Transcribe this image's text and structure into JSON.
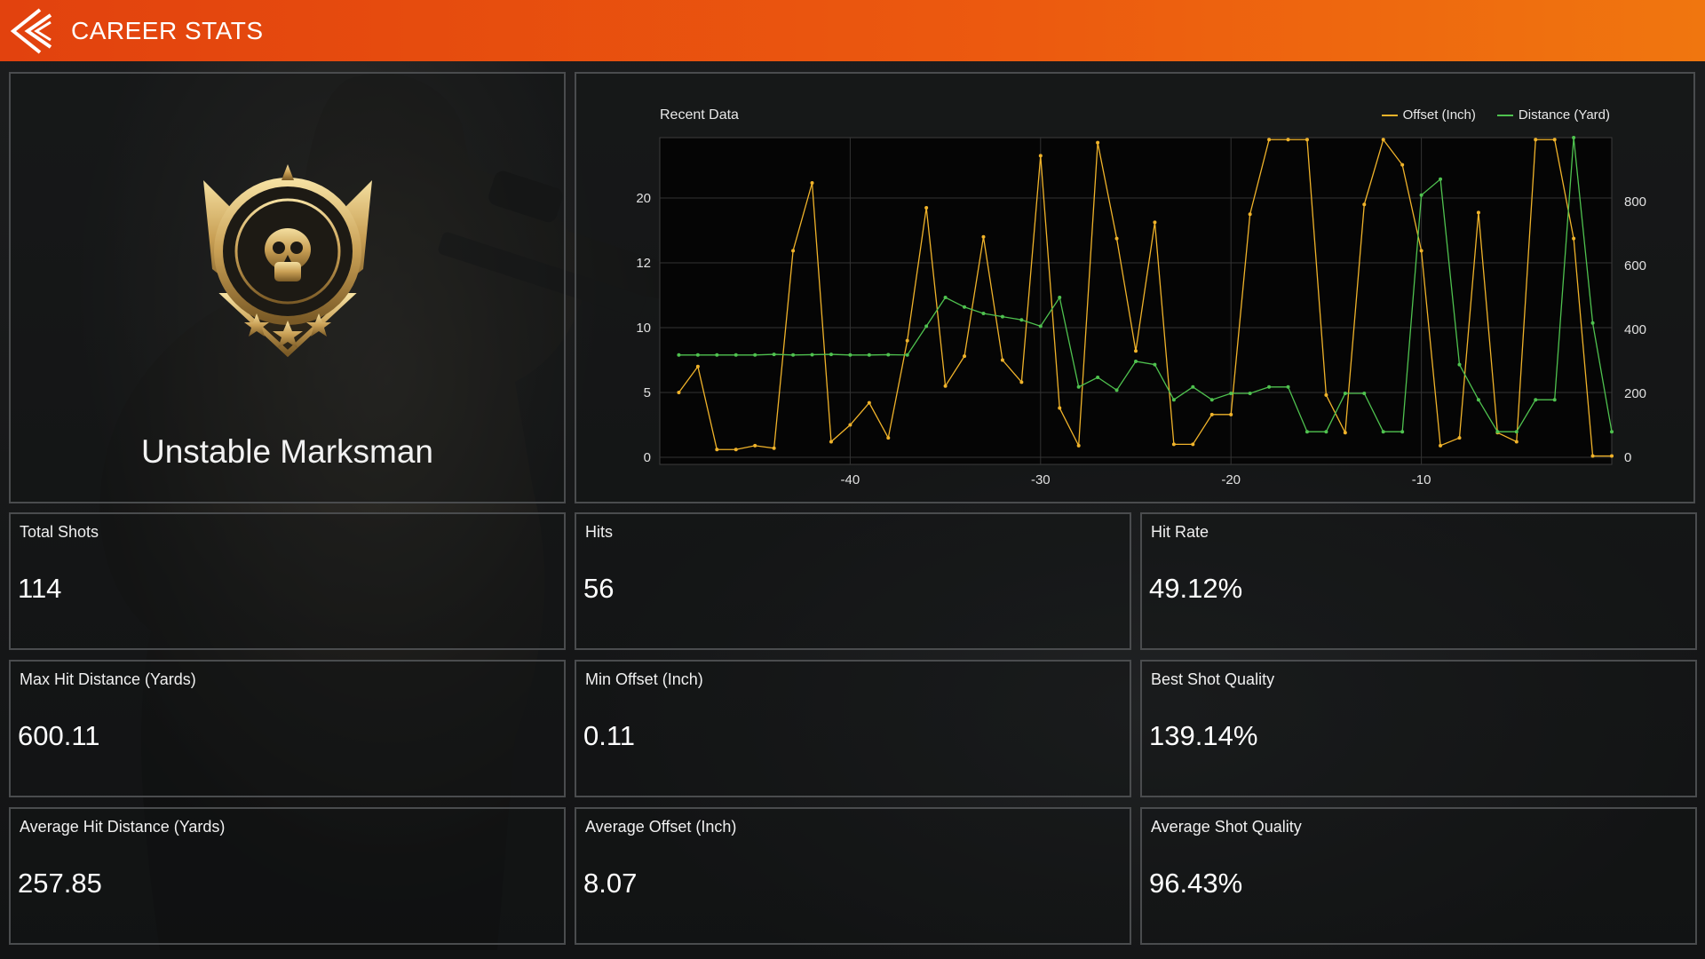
{
  "header": {
    "title": "CAREER STATS",
    "back_icon": "double-chevron-left-icon"
  },
  "colors": {
    "accent": "#e8520f",
    "offset_series": "#f0b32a",
    "distance_series": "#4fc24f"
  },
  "badge": {
    "name": "Unstable Marksman",
    "icon": "skull-crosshair-medal-icon",
    "stars": 3
  },
  "chart": {
    "title": "Recent Data",
    "legend": {
      "offset": "Offset (Inch)",
      "distance": "Distance (Yard)"
    }
  },
  "chart_data": {
    "type": "line",
    "title": "Recent Data",
    "x": [
      -49,
      -48,
      -47,
      -46,
      -45,
      -44,
      -43,
      -42,
      -41,
      -40,
      -39,
      -38,
      -37,
      -36,
      -35,
      -34,
      -33,
      -32,
      -31,
      -30,
      -29,
      -28,
      -27,
      -26,
      -25,
      -24,
      -23,
      -22,
      -21,
      -20,
      -19,
      -18,
      -17,
      -16,
      -15,
      -14,
      -13,
      -12,
      -11,
      -10,
      -9,
      -8,
      -7,
      -6,
      -5,
      -4,
      -3,
      -2,
      -1,
      0
    ],
    "xticks": [
      "-40",
      "-30",
      "-20",
      "-10"
    ],
    "xlim": [
      -50,
      0
    ],
    "y_left_ticks": [
      "0",
      "5",
      "10",
      "12",
      "20"
    ],
    "y_right_ticks": [
      "0",
      "200",
      "400",
      "600",
      "800"
    ],
    "y_right_lim": [
      0,
      1000
    ],
    "series": [
      {
        "name": "Offset (Inch)",
        "axis": "left",
        "values": [
          5.0,
          7.0,
          0.6,
          0.6,
          0.9,
          0.7,
          13.5,
          21.5,
          1.2,
          2.5,
          4.2,
          1.5,
          9.0,
          18.8,
          5.5,
          7.8,
          15.2,
          7.5,
          5.8,
          24.2,
          3.8,
          0.9,
          25.5,
          15.0,
          8.2,
          17.0,
          1.0,
          1.0,
          3.3,
          3.3,
          18.0,
          25.8,
          25.8,
          25.8,
          4.8,
          1.9,
          19.2,
          25.8,
          23.3,
          13.5,
          0.9,
          1.5,
          18.2,
          1.9,
          1.2,
          25.8,
          25.8,
          15.0,
          0.1,
          0.1
        ]
      },
      {
        "name": "Distance (Yard)",
        "axis": "right",
        "values": [
          320,
          320,
          320,
          320,
          320,
          322,
          320,
          321,
          322,
          320,
          320,
          321,
          320,
          410,
          500,
          470,
          450,
          440,
          430,
          410,
          500,
          220,
          250,
          210,
          300,
          290,
          180,
          220,
          180,
          200,
          200,
          220,
          220,
          80,
          80,
          200,
          200,
          80,
          80,
          820,
          870,
          290,
          180,
          80,
          80,
          180,
          180,
          1000,
          420,
          80
        ]
      }
    ]
  },
  "stats": [
    {
      "label": "Total Shots",
      "value": "114"
    },
    {
      "label": "Hits",
      "value": "56"
    },
    {
      "label": "Hit Rate",
      "value": "49.12%"
    },
    {
      "label": "Max Hit Distance (Yards)",
      "value": "600.11"
    },
    {
      "label": "Min Offset (Inch)",
      "value": "0.11"
    },
    {
      "label": "Best Shot Quality",
      "value": "139.14%"
    },
    {
      "label": "Average Hit Distance (Yards)",
      "value": "257.85"
    },
    {
      "label": "Average Offset (Inch)",
      "value": "8.07"
    },
    {
      "label": "Average Shot Quality",
      "value": "96.43%"
    }
  ]
}
